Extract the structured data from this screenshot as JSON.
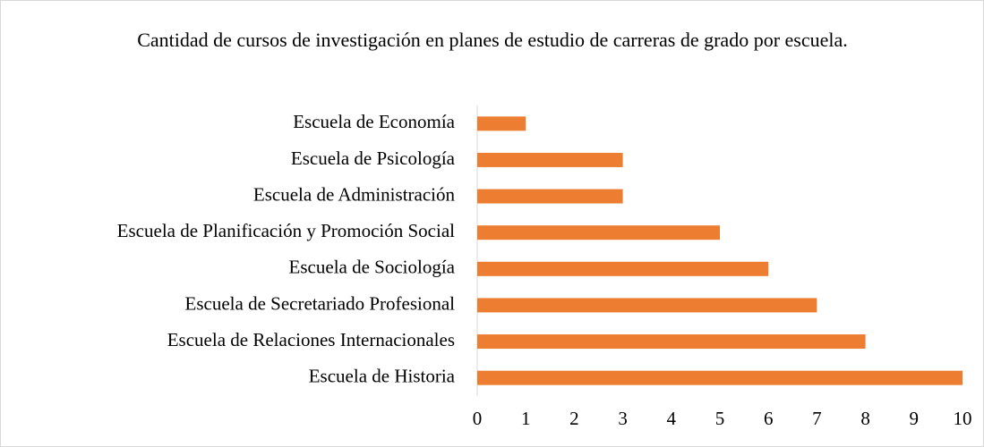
{
  "chart_data": {
    "type": "bar",
    "orientation": "horizontal",
    "title": "Cantidad de cursos de investigación en planes de estudio de carreras de grado por escuela.",
    "categories": [
      "Escuela de Economía",
      "Escuela de Psicología",
      "Escuela de Administración",
      "Escuela de Planificación y Promoción Social",
      "Escuela de Sociología",
      "Escuela de Secretariado Profesional",
      "Escuela de Relaciones Internacionales",
      "Escuela de Historia"
    ],
    "values": [
      1,
      3,
      3,
      5,
      6,
      7,
      8,
      10
    ],
    "color": "#ed7d31",
    "xlim": [
      0,
      10
    ],
    "xticks": [
      0,
      1,
      2,
      3,
      4,
      5,
      6,
      7,
      8,
      9,
      10
    ],
    "grid": false
  }
}
